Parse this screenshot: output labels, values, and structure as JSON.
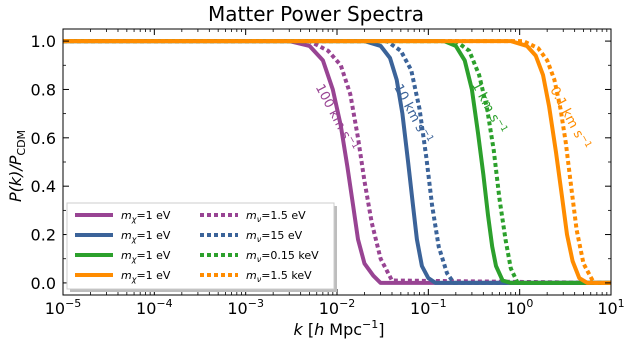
{
  "chart_data": {
    "type": "line",
    "title": "Matter Power Spectra",
    "xlabel": {
      "pre": "k [",
      "var": "h",
      "post": " Mpc",
      "sup": "−1",
      "close": "]"
    },
    "ylabel": {
      "main": "P(k)/P",
      "sub": "CDM"
    },
    "xscale": "log",
    "xlim": [
      1e-05,
      10
    ],
    "ylim": [
      -0.05,
      1.05
    ],
    "x_ticks": [
      {
        "value": 1e-05,
        "base": "10",
        "exp": "−5"
      },
      {
        "value": 0.0001,
        "base": "10",
        "exp": "−4"
      },
      {
        "value": 0.001,
        "base": "10",
        "exp": "−3"
      },
      {
        "value": 0.01,
        "base": "10",
        "exp": "−2"
      },
      {
        "value": 0.1,
        "base": "10",
        "exp": "−1"
      },
      {
        "value": 1,
        "base": "10",
        "exp": "0"
      },
      {
        "value": 10,
        "base": "10",
        "exp": "1"
      }
    ],
    "y_ticks": [
      "0.0",
      "0.2",
      "0.4",
      "0.6",
      "0.8",
      "1.0"
    ],
    "grid": false,
    "legend_position": "lower-left",
    "series": [
      {
        "name": "mχ=1 eV",
        "sym": "m",
        "sub": "χ",
        "val": "=1 eV",
        "style": "solid",
        "color": "#984493",
        "x": [
          1e-05,
          0.003,
          0.005,
          0.007,
          0.009,
          0.011,
          0.013,
          0.015,
          0.017,
          0.02,
          0.025,
          0.03,
          10
        ],
        "y": [
          1.0,
          1.0,
          0.98,
          0.92,
          0.8,
          0.65,
          0.48,
          0.32,
          0.18,
          0.08,
          0.03,
          0.0,
          0.0
        ]
      },
      {
        "name": "mν=1.5 eV",
        "sym": "m",
        "sub": "ν",
        "val": "=1.5 eV",
        "style": "dotted",
        "color": "#984493",
        "x": [
          1e-05,
          0.005,
          0.008,
          0.011,
          0.014,
          0.017,
          0.02,
          0.024,
          0.03,
          0.04,
          10
        ],
        "y": [
          1.0,
          1.0,
          0.96,
          0.9,
          0.78,
          0.6,
          0.42,
          0.25,
          0.1,
          0.01,
          0.0
        ]
      },
      {
        "name": "mχ=1 eV",
        "sym": "m",
        "sub": "χ",
        "val": "=1 eV",
        "style": "solid",
        "color": "#3b6399",
        "x": [
          1e-05,
          0.02,
          0.03,
          0.038,
          0.045,
          0.052,
          0.06,
          0.068,
          0.075,
          0.085,
          0.1,
          0.12,
          10
        ],
        "y": [
          1.0,
          1.0,
          0.98,
          0.93,
          0.84,
          0.7,
          0.5,
          0.32,
          0.18,
          0.07,
          0.02,
          0.0,
          0.0
        ]
      },
      {
        "name": "mν=15 eV",
        "sym": "m",
        "sub": "ν",
        "val": "=15 eV",
        "style": "dotted",
        "color": "#3b6399",
        "x": [
          1e-05,
          0.035,
          0.05,
          0.065,
          0.08,
          0.095,
          0.11,
          0.13,
          0.16,
          0.19,
          10
        ],
        "y": [
          1.0,
          1.0,
          0.96,
          0.88,
          0.72,
          0.52,
          0.32,
          0.15,
          0.04,
          0.0,
          0.0
        ]
      },
      {
        "name": "mχ=1 eV",
        "sym": "m",
        "sub": "χ",
        "val": "=1 eV",
        "style": "solid",
        "color": "#2ca02c",
        "x": [
          1e-05,
          0.15,
          0.2,
          0.25,
          0.3,
          0.35,
          0.4,
          0.45,
          0.5,
          0.55,
          0.65,
          0.8,
          10
        ],
        "y": [
          1.0,
          1.0,
          0.98,
          0.92,
          0.8,
          0.62,
          0.45,
          0.28,
          0.15,
          0.07,
          0.01,
          0.0,
          0.0
        ]
      },
      {
        "name": "mν=0.15 keV",
        "sym": "m",
        "sub": "ν",
        "val": "=0.15 keV",
        "style": "dotted",
        "color": "#2ca02c",
        "x": [
          1e-05,
          0.2,
          0.28,
          0.36,
          0.44,
          0.52,
          0.6,
          0.7,
          0.8,
          0.95,
          10
        ],
        "y": [
          1.0,
          1.0,
          0.96,
          0.86,
          0.72,
          0.55,
          0.35,
          0.18,
          0.06,
          0.0,
          0.0
        ]
      },
      {
        "name": "mχ=1 eV",
        "sym": "m",
        "sub": "χ",
        "val": "=1 eV",
        "style": "solid",
        "color": "#ff8c00",
        "x": [
          1e-05,
          0.8,
          1.2,
          1.5,
          1.8,
          2.1,
          2.5,
          2.9,
          3.3,
          3.8,
          4.5,
          5.5,
          10
        ],
        "y": [
          1.0,
          1.0,
          0.98,
          0.94,
          0.86,
          0.73,
          0.54,
          0.36,
          0.2,
          0.09,
          0.02,
          0.0,
          0.0
        ]
      },
      {
        "name": "mν=1.5 keV",
        "sym": "m",
        "sub": "ν",
        "val": "=1.5 keV",
        "style": "dotted",
        "color": "#ff8c00",
        "x": [
          1e-05,
          1.1,
          1.6,
          2.0,
          2.4,
          2.8,
          3.2,
          3.6,
          4.2,
          5.0,
          6.5,
          10
        ],
        "y": [
          1.0,
          1.0,
          0.97,
          0.92,
          0.84,
          0.72,
          0.58,
          0.42,
          0.22,
          0.08,
          0.0,
          0.0
        ]
      }
    ],
    "annotations": [
      {
        "main": "100 km s",
        "sup": "−1",
        "color": "#984493",
        "x": 0.0058,
        "y": 0.81,
        "angle": 62
      },
      {
        "main": "10 km s",
        "sup": "−1",
        "color": "#3b6399",
        "x": 0.042,
        "y": 0.81,
        "angle": 62
      },
      {
        "main": "1 km s",
        "sup": "−1",
        "color": "#2ca02c",
        "x": 0.3,
        "y": 0.82,
        "angle": 62
      },
      {
        "main": "0.1 km s",
        "sup": "−1",
        "color": "#ff8c00",
        "x": 2.15,
        "y": 0.8,
        "angle": 62
      }
    ]
  }
}
